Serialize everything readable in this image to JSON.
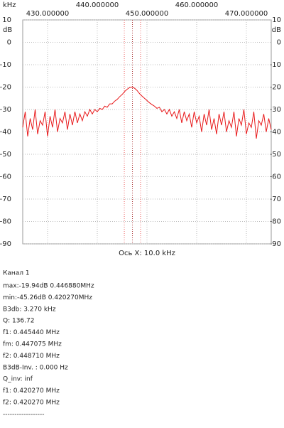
{
  "chart_data": {
    "type": "line",
    "x_unit": "kHz",
    "y_unit": "dB",
    "xlabel": "Ось X: 10.0 kHz",
    "xlim": [
      425,
      475
    ],
    "xticks": [
      {
        "value": 430,
        "label": "430.000000"
      },
      {
        "value": 440,
        "label": "440.000000"
      },
      {
        "value": 450,
        "label": "450.000000"
      },
      {
        "value": 460,
        "label": "460.000000"
      },
      {
        "value": 470,
        "label": "470.000000"
      }
    ],
    "ylim": [
      -90,
      10
    ],
    "yticks": [
      10,
      0,
      -10,
      -20,
      -30,
      -40,
      -50,
      -60,
      -70,
      -80,
      -90
    ],
    "grid": true,
    "markers": [
      445.44,
      447.075,
      448.71
    ],
    "series": [
      {
        "color": "#e8191b",
        "x": [
          425,
          425.5,
          426,
          426.5,
          427,
          427.5,
          428,
          428.5,
          429,
          429.5,
          430,
          430.5,
          431,
          431.5,
          432,
          432.5,
          433,
          433.5,
          434,
          434.5,
          435,
          435.5,
          436,
          436.5,
          437,
          437.5,
          438,
          438.5,
          439,
          439.5,
          440,
          440.5,
          441,
          441.5,
          442,
          442.5,
          443,
          443.5,
          444,
          444.5,
          445,
          445.5,
          446,
          446.5,
          447,
          447.5,
          448,
          448.5,
          449,
          449.5,
          450,
          450.5,
          451,
          451.5,
          452,
          452.5,
          453,
          453.5,
          454,
          454.5,
          455,
          455.5,
          456,
          456.5,
          457,
          457.5,
          458,
          458.5,
          459,
          459.5,
          460,
          460.5,
          461,
          461.5,
          462,
          462.5,
          463,
          463.5,
          464,
          464.5,
          465,
          465.5,
          466,
          466.5,
          467,
          467.5,
          468,
          468.5,
          469,
          469.5,
          470,
          470.5,
          471,
          471.5,
          472,
          472.5,
          473,
          473.5,
          474,
          474.5,
          475
        ],
        "values": [
          -38,
          -31,
          -42,
          -34,
          -39,
          -30,
          -41,
          -35,
          -37,
          -31,
          -42,
          -33,
          -38,
          -30,
          -40,
          -34,
          -36,
          -31,
          -39,
          -32,
          -37,
          -31,
          -36,
          -32,
          -35,
          -31,
          -33,
          -30,
          -32,
          -30,
          -31,
          -29.5,
          -30,
          -28.5,
          -29,
          -27.5,
          -27.5,
          -26.3,
          -25.5,
          -24.3,
          -23.3,
          -22,
          -21,
          -20.2,
          -19.95,
          -20.5,
          -21.5,
          -22.9,
          -24,
          -25,
          -26,
          -27,
          -27.8,
          -28.5,
          -29.5,
          -29,
          -31,
          -30,
          -32,
          -30,
          -33,
          -31,
          -34,
          -30,
          -36,
          -31,
          -35,
          -32,
          -38,
          -31,
          -36,
          -33,
          -40,
          -32,
          -37,
          -30,
          -39,
          -34,
          -41,
          -32,
          -37,
          -31,
          -40,
          -35,
          -38,
          -31,
          -42,
          -34,
          -37,
          -30,
          -41,
          -36,
          -38,
          -31,
          -43,
          -35,
          -37,
          -32,
          -40,
          -34,
          -39
        ]
      }
    ]
  },
  "info": {
    "title": "Канал 1",
    "lines": [
      "max:-19.94dB 0.446880MHz",
      "min:-45.26dB 0.420270MHz",
      "B3db: 3.270 kHz",
      "Q: 136.72",
      "f1: 0.445440 MHz",
      "fm: 0.447075 MHz",
      "f2: 0.448710 MHz",
      "B3dB-Inv. : 0.000 Hz",
      "Q_inv: inf",
      "f1: 0.420270 MHz",
      "f2: 0.420270 MHz",
      "------------------"
    ]
  }
}
